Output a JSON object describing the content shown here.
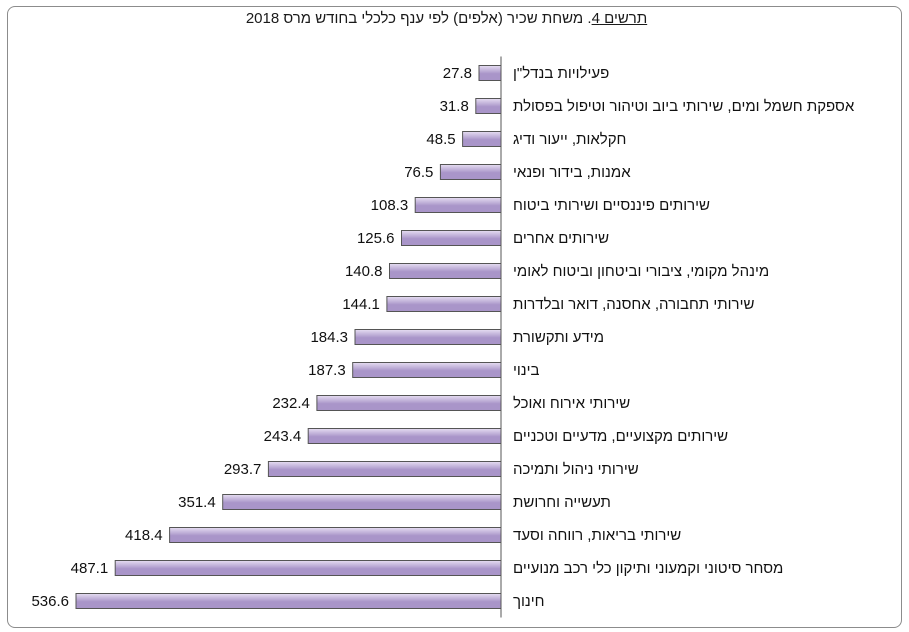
{
  "title": {
    "label": "תרשים 4",
    "text": ". משחת שכיר (אלפים) לפי ענף כלכלי בחודש מרס 2018"
  },
  "colors": {
    "bar_fill_light": "#e6def2",
    "bar_fill_dark": "#a995c9",
    "bar_stroke": "#555555",
    "axis": "#555555"
  },
  "chart_data": {
    "type": "bar",
    "orientation": "horizontal",
    "title": "תרשים 4. משחת שכיר (אלפים) לפי ענף כלכלי בחודש מרס 2018",
    "categories": [
      "פעילויות בנדל\"ן",
      "אספקת חשמל ומים, שירותי ביוב וטיהור וטיפול בפסולת",
      "חקלאות, ייעור ודיג",
      "אמנות, בידור ופנאי",
      "שירותים פיננסיים ושירותי ביטוח",
      "שירותים אחרים",
      "מינהל מקומי, ציבורי וביטחון וביטוח לאומי",
      "שירותי תחבורה, אחסנה, דואר ובלדרות",
      "מידע ותקשורת",
      "בינוי",
      "שירותי אירוח ואוכל",
      "שירותים מקצועיים, מדעיים וטכניים",
      "שירותי ניהול ותמיכה",
      "תעשייה וחרושת",
      "שירותי בריאות, רווחה וסעד",
      "מסחר סיטוני וקמעוני ותיקון כלי רכב מנועיים",
      "חינוך"
    ],
    "values": [
      27.8,
      31.8,
      48.5,
      76.5,
      108.3,
      125.6,
      140.8,
      144.1,
      184.3,
      187.3,
      232.4,
      243.4,
      293.7,
      351.4,
      418.4,
      487.1,
      536.6
    ],
    "value_labels": [
      "27.8",
      "31.8",
      "48.5",
      "76.5",
      "108.3",
      "125.6",
      "140.8",
      "144.1",
      "184.3",
      "187.3",
      "232.4",
      "243.4",
      "293.7",
      "351.4",
      "418.4",
      "487.1",
      "536.6"
    ],
    "xlim": [
      0,
      536.6
    ],
    "grid": false,
    "legend": "none"
  }
}
